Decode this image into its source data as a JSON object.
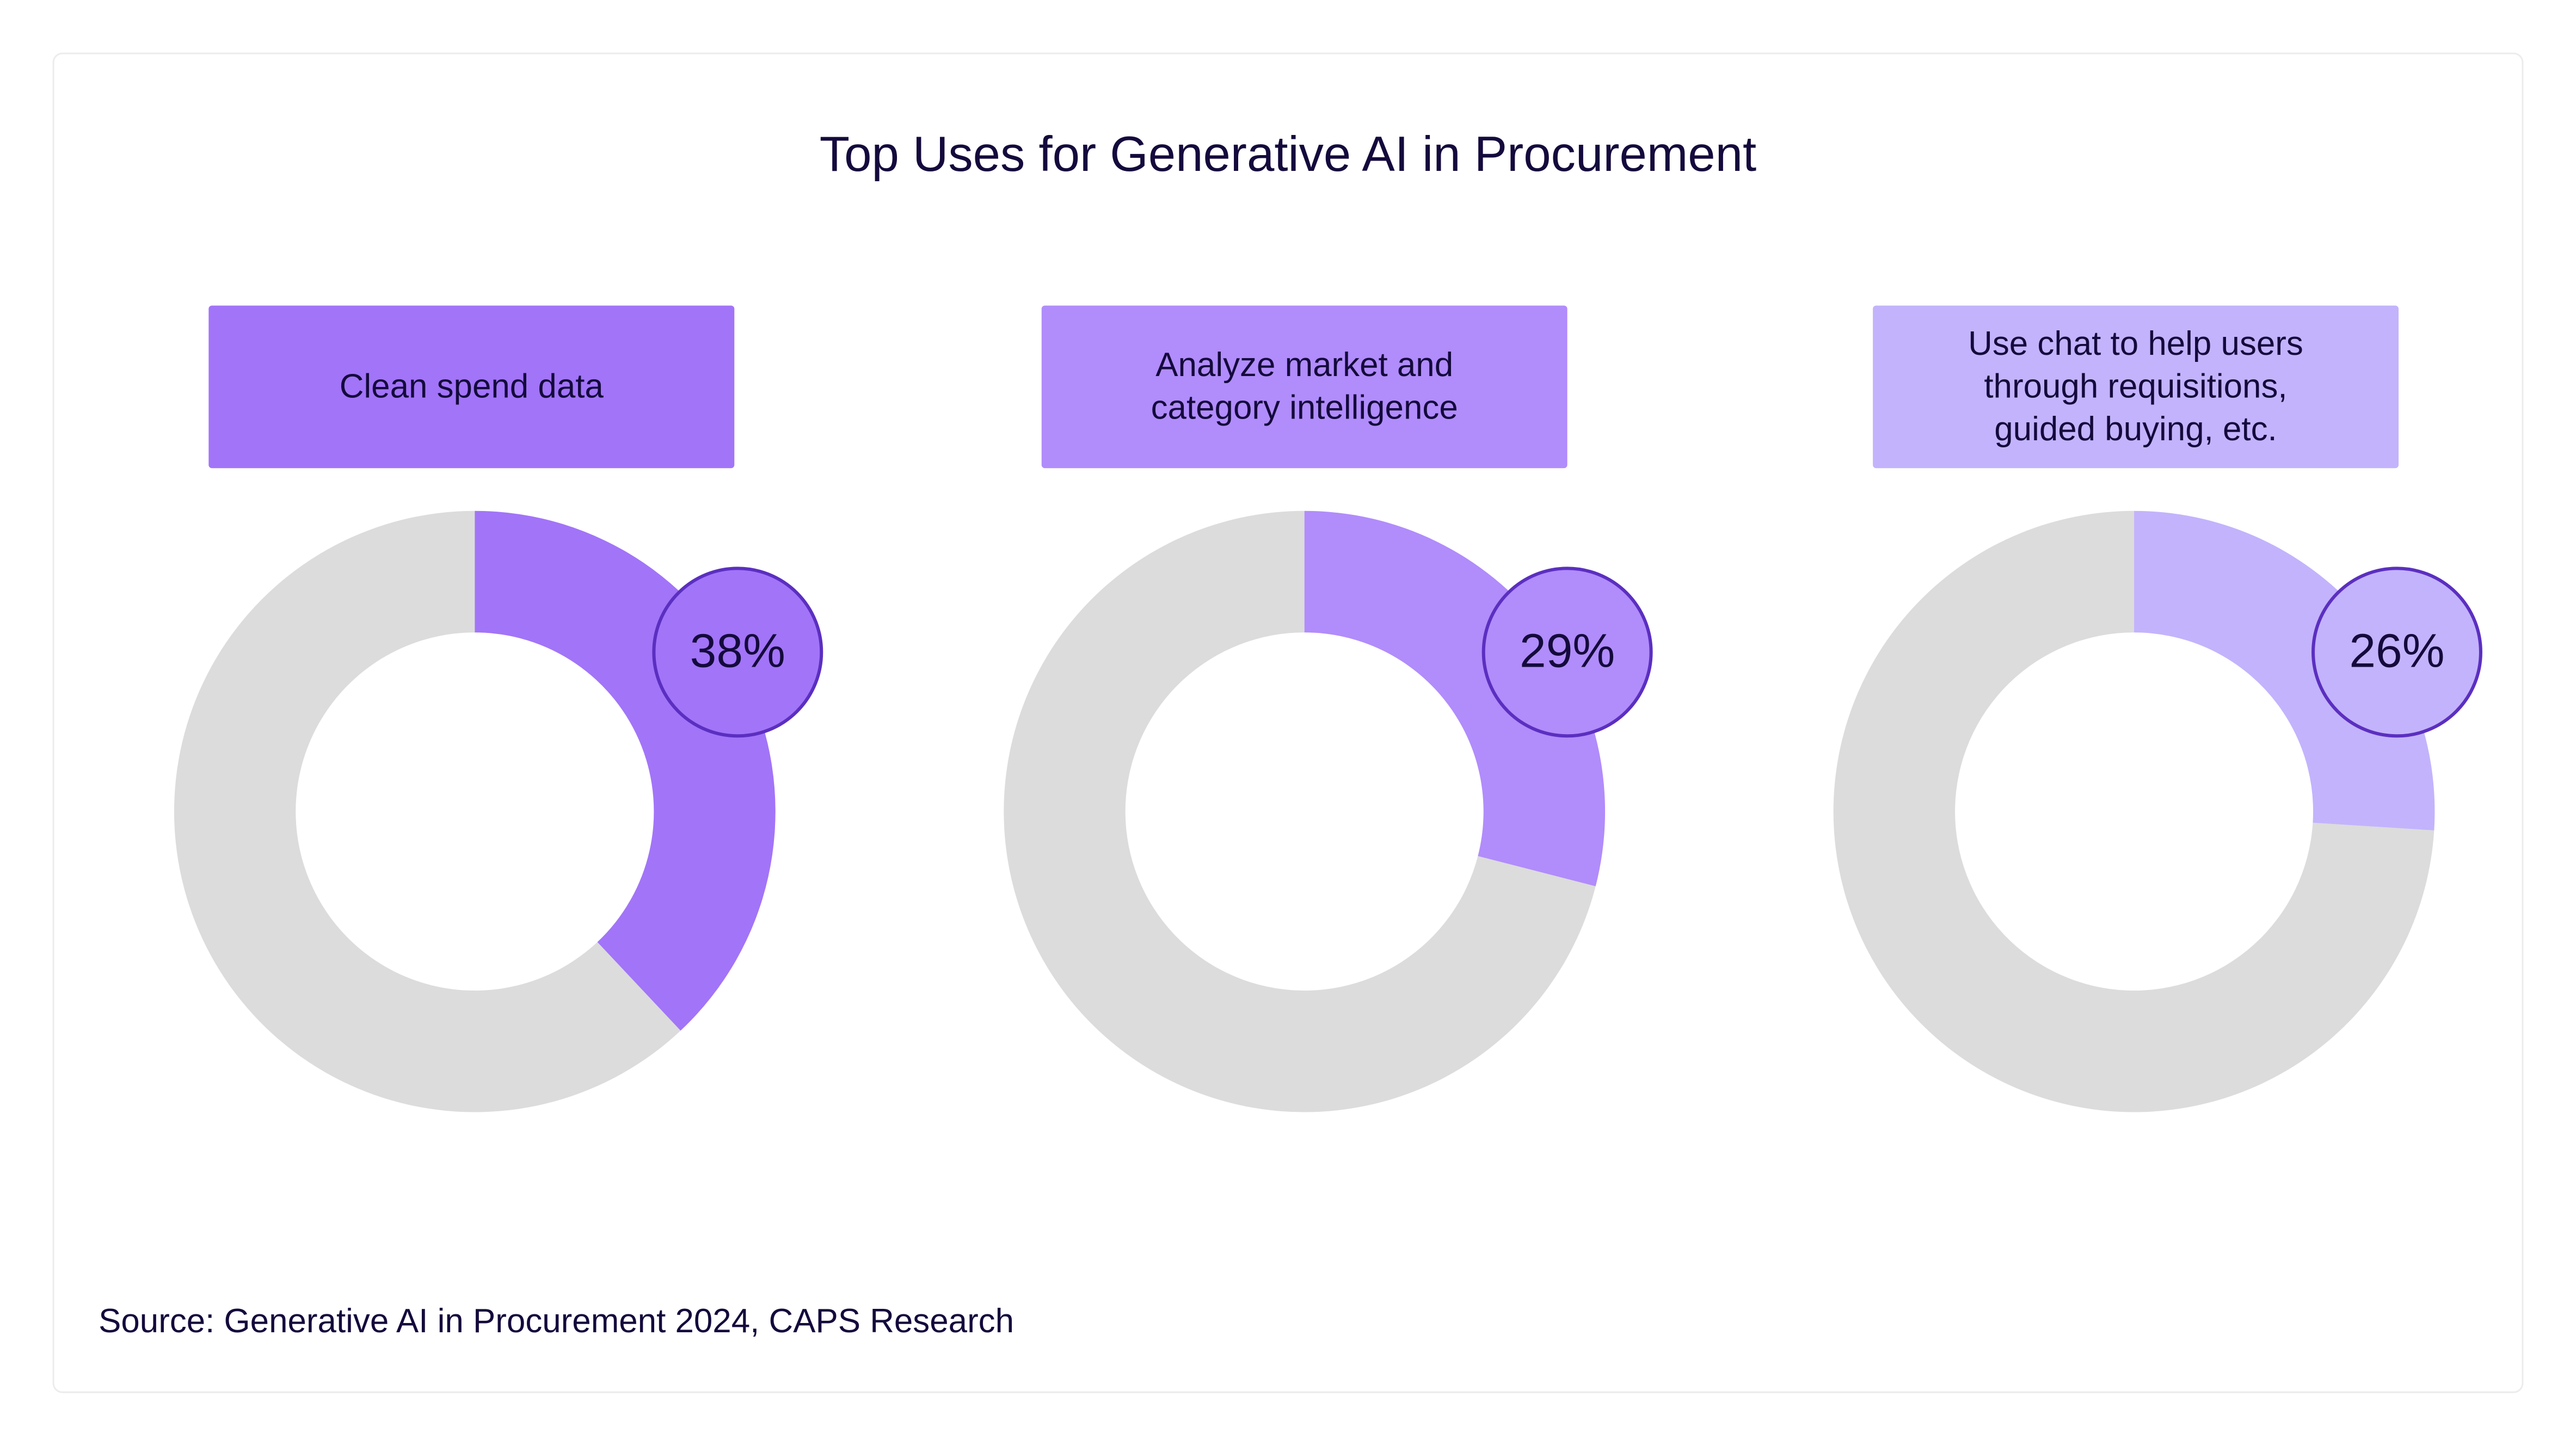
{
  "chart_data": {
    "type": "donut",
    "title": "Top Uses for Generative AI in Procurement",
    "charts": [
      {
        "label": "Clean spend data",
        "value": 38,
        "value_label": "38%",
        "color": "#a274f8"
      },
      {
        "label": "Analyze market and\ncategory intelligence",
        "value": 29,
        "value_label": "29%",
        "color": "#b18cfb"
      },
      {
        "label": "Use chat to help users\nthrough requisitions,\nguided buying, etc.",
        "value": 26,
        "value_label": "26%",
        "color": "#c3b3fc"
      }
    ],
    "remainder_color": "#dcdcdc",
    "badge_border_color": "#5b2fc0",
    "source": "Source: Generative AI in Procurement 2024, CAPS Research"
  }
}
